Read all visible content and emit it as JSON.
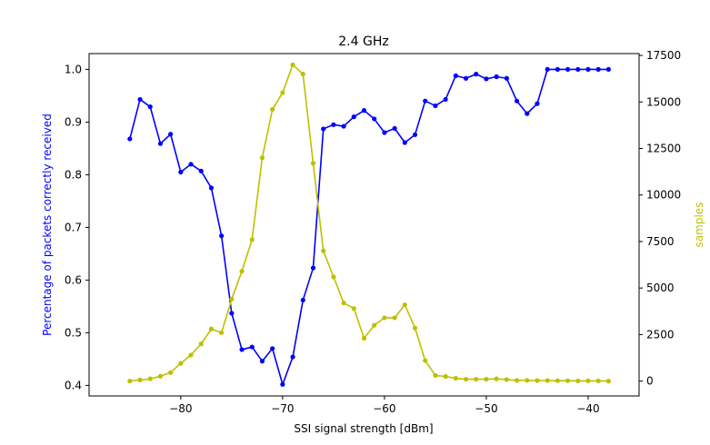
{
  "chart_data": {
    "type": "line",
    "title": "2.4 GHz",
    "xlabel": "SSI signal strength [dBm]",
    "ylabel_left": "Percentage of packets correctly received",
    "ylabel_right": "samples",
    "xlim": [
      -89,
      -35
    ],
    "ylim_left": [
      0.38,
      1.03
    ],
    "ylim_right": [
      -800,
      17600
    ],
    "x_ticks": [
      -80,
      -70,
      -60,
      -50,
      -40
    ],
    "y_left_ticks": [
      0.4,
      0.5,
      0.6,
      0.7,
      0.8,
      0.9,
      1.0
    ],
    "y_right_ticks": [
      0,
      2500,
      5000,
      7500,
      10000,
      12500,
      15000,
      17500
    ],
    "grid": false,
    "series": [
      {
        "axis": "left",
        "color": "#0000ff",
        "x": [
          -85,
          -84,
          -83,
          -82,
          -81,
          -80,
          -79,
          -78,
          -77,
          -76,
          -75,
          -74,
          -73,
          -72,
          -71,
          -70,
          -69,
          -68,
          -67,
          -66,
          -65,
          -64,
          -63,
          -62,
          -61,
          -60,
          -59,
          -58,
          -57,
          -56,
          -55,
          -54,
          -53,
          -52,
          -51,
          -50,
          -49,
          -48,
          -47,
          -46,
          -45,
          -44,
          -43,
          -42,
          -41,
          -40,
          -39,
          -38
        ],
        "values": [
          0.868,
          0.943,
          0.929,
          0.859,
          0.877,
          0.805,
          0.82,
          0.807,
          0.775,
          0.684,
          0.537,
          0.468,
          0.473,
          0.446,
          0.47,
          0.402,
          0.454,
          0.562,
          0.623,
          0.887,
          0.895,
          0.892,
          0.91,
          0.922,
          0.906,
          0.88,
          0.888,
          0.861,
          0.876,
          0.94,
          0.931,
          0.943,
          0.988,
          0.983,
          0.991,
          0.982,
          0.986,
          0.983,
          0.94,
          0.916,
          0.935,
          1.0,
          1.0,
          1.0,
          1.0,
          1.0,
          1.0,
          1.0
        ]
      },
      {
        "axis": "right",
        "color": "#bfbf00",
        "x": [
          -85,
          -84,
          -83,
          -82,
          -81,
          -80,
          -79,
          -78,
          -77,
          -76,
          -75,
          -74,
          -73,
          -72,
          -71,
          -70,
          -69,
          -68,
          -67,
          -66,
          -65,
          -64,
          -63,
          -62,
          -61,
          -60,
          -59,
          -58,
          -57,
          -56,
          -55,
          -54,
          -53,
          -52,
          -51,
          -50,
          -49,
          -48,
          -47,
          -46,
          -45,
          -44,
          -43,
          -42,
          -41,
          -40,
          -39,
          -38
        ],
        "values": [
          0,
          60,
          120,
          260,
          460,
          950,
          1400,
          2000,
          2800,
          2600,
          4400,
          5900,
          7600,
          12000,
          14600,
          15500,
          17000,
          16500,
          11700,
          7000,
          5600,
          4200,
          3900,
          2300,
          3000,
          3400,
          3400,
          4100,
          2850,
          1100,
          300,
          250,
          150,
          100,
          100,
          100,
          120,
          80,
          40,
          40,
          30,
          30,
          20,
          20,
          10,
          10,
          10,
          0
        ]
      }
    ]
  }
}
